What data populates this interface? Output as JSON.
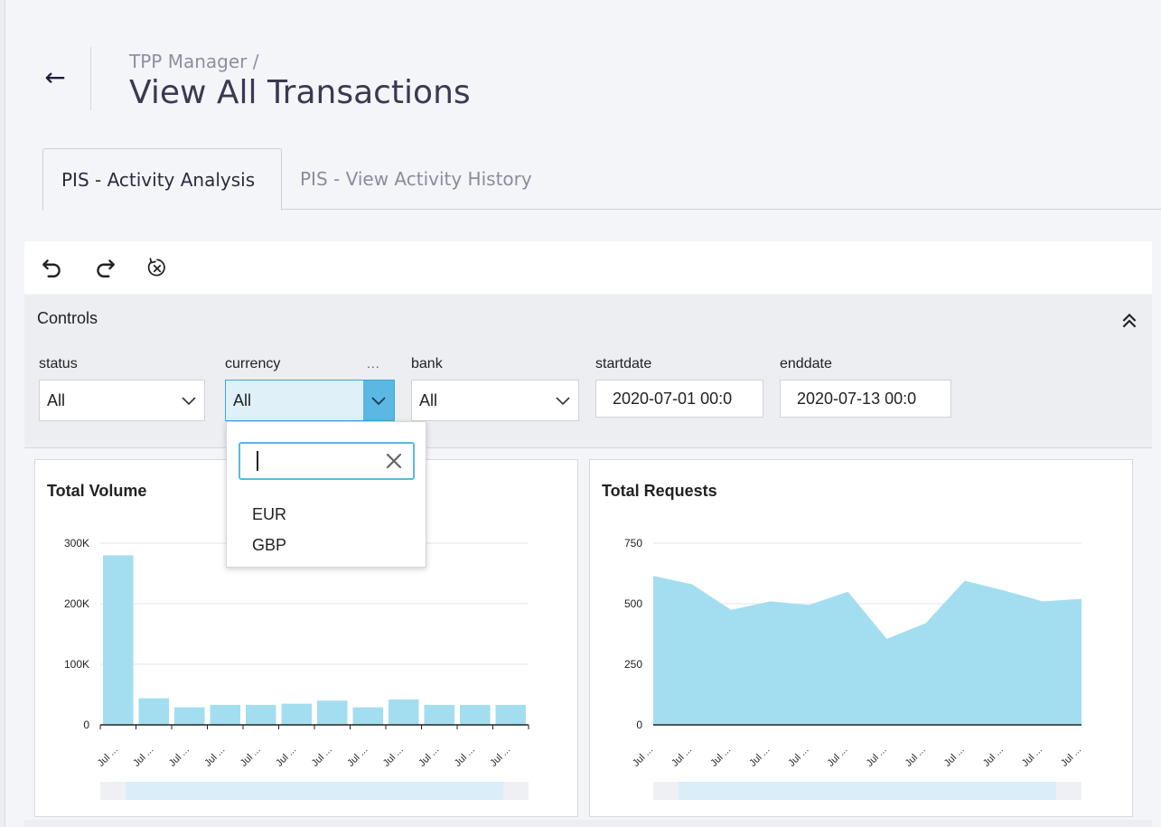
{
  "header": {
    "back_icon": "arrow-left-icon",
    "breadcrumb": "TPP Manager /",
    "title": "View All Transactions"
  },
  "tabs": [
    {
      "label": "PIS - Activity Analysis",
      "active": true
    },
    {
      "label": "PIS - View Activity History",
      "active": false
    }
  ],
  "toolbar": {
    "icons": [
      "undo-icon",
      "redo-icon",
      "reset-icon"
    ]
  },
  "controls": {
    "title": "Controls",
    "collapse_icon": "double-chevron-up-icon",
    "status": {
      "label": "status",
      "value": "All"
    },
    "currency": {
      "label": "currency",
      "value": "All",
      "more": "..."
    },
    "bank": {
      "label": "bank",
      "value": "All"
    },
    "startdate": {
      "label": "startdate",
      "value": "2020-07-01 00:0"
    },
    "enddate": {
      "label": "enddate",
      "value": "2020-07-13 00:0"
    }
  },
  "currency_dropdown": {
    "search_value": "",
    "clear_icon": "close-icon",
    "options": [
      "EUR",
      "GBP"
    ]
  },
  "colors": {
    "accent": "#5bb8e2",
    "bar_fill": "#a3def0",
    "page_bg": "#f4f5f9"
  },
  "chart_data": [
    {
      "type": "bar",
      "title": "Total Volume",
      "categories": [
        "Jul ...",
        "Jul ...",
        "Jul ...",
        "Jul ...",
        "Jul ...",
        "Jul ...",
        "Jul ...",
        "Jul ...",
        "Jul ...",
        "Jul ...",
        "Jul ...",
        "Jul ..."
      ],
      "values": [
        280000,
        44000,
        29000,
        33000,
        33000,
        35000,
        40000,
        29000,
        42000,
        33000,
        33000,
        33000
      ],
      "yticks": [
        "300K",
        "200K",
        "100K",
        "0"
      ],
      "ylim": [
        0,
        300000
      ],
      "grid": true
    },
    {
      "type": "area",
      "title": "Total Requests",
      "categories": [
        "Jul ...",
        "Jul ...",
        "Jul ...",
        "Jul ...",
        "Jul ...",
        "Jul ...",
        "Jul ...",
        "Jul ...",
        "Jul ...",
        "Jul ...",
        "Jul ...",
        "Jul ..."
      ],
      "values": [
        615,
        580,
        475,
        510,
        495,
        550,
        355,
        420,
        595,
        555,
        510,
        520
      ],
      "yticks": [
        "750",
        "500",
        "250",
        "0"
      ],
      "ylim": [
        0,
        750
      ],
      "grid": true
    }
  ]
}
